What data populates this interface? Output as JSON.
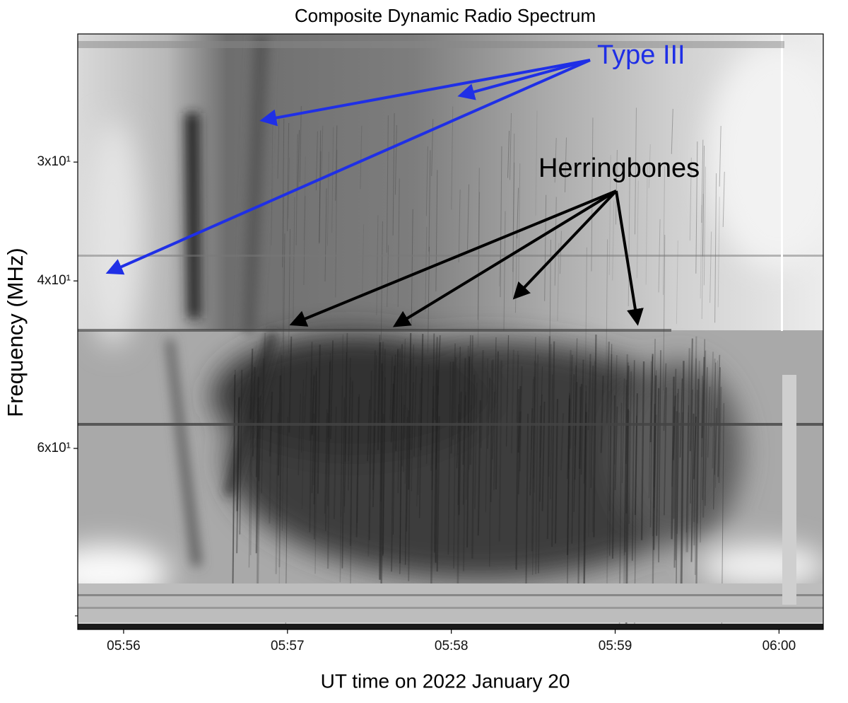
{
  "chart_data": {
    "type": "spectrogram",
    "title": "Composite Dynamic Radio Spectrum",
    "xlabel": "UT time on 2022 January 20",
    "ylabel": "Frequency (MHz)",
    "xlim": [
      355.72,
      360.27
    ],
    "xticks": [
      {
        "value": 356,
        "label": "05:56"
      },
      {
        "value": 357,
        "label": "05:57"
      },
      {
        "value": 358,
        "label": "05:58"
      },
      {
        "value": 359,
        "label": "05:59"
      },
      {
        "value": 360,
        "label": "06:00"
      }
    ],
    "ylim": [
      22,
      93
    ],
    "yscale": "log",
    "yinvert": true,
    "yticks": [
      {
        "value": 30,
        "label": "3x10¹"
      },
      {
        "value": 40,
        "label": "4x10¹"
      },
      {
        "value": 60,
        "label": "6x10¹"
      }
    ],
    "yminorticks": [
      90
    ],
    "annotations": [
      {
        "text": "Type III",
        "color": "#1f2fe6"
      },
      {
        "text": "Herringbones",
        "color": "#000000"
      }
    ]
  }
}
